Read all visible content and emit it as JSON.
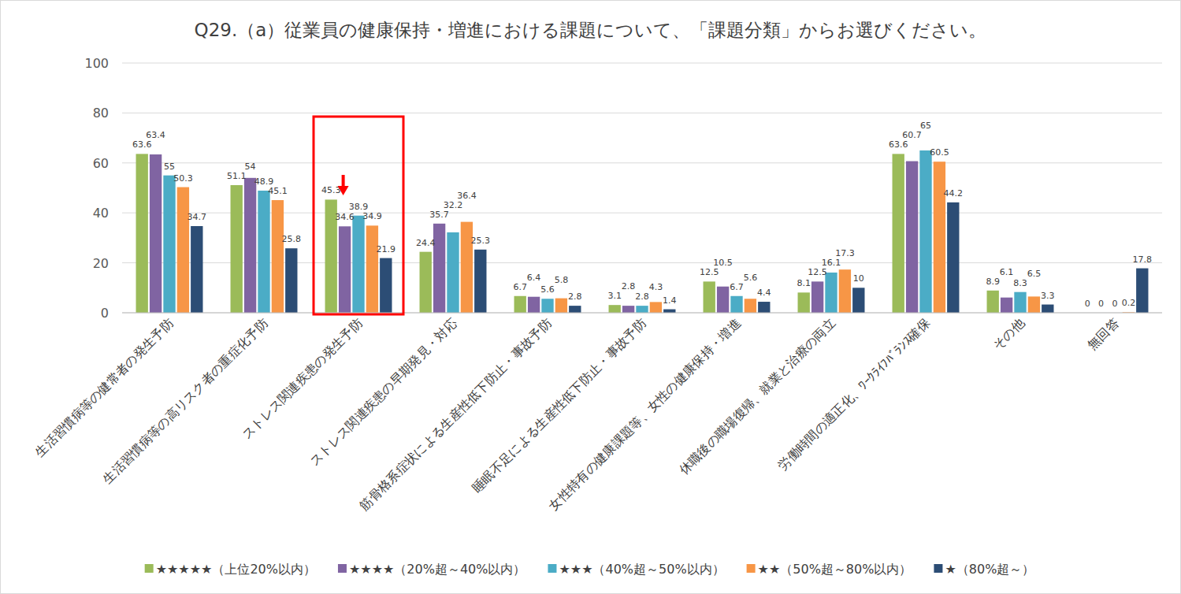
{
  "chart_data": {
    "type": "bar",
    "title": "Q29.（a）従業員の健康保持・増進における課題について、「課題分類」からお選びください。",
    "categories": [
      "生活習慣病等の健常者の発生予防",
      "生活習慣病等の高リスク者の重症化予防",
      "ストレス関連疾患の発生予防",
      "ストレス関連疾患の早期発見・対応",
      "筋骨格系症状による生産性低下防止・事故予防",
      "睡眠不足による生産性低下防止・事故予防",
      "女性特有の健康課題等、女性の健康保持・増進",
      "休職後の職場復帰、就業と治療の両立",
      "労働時間の適正化、ﾜｰｸﾗｲﾌﾊﾞﾗﾝｽ確保",
      "その他",
      "無回答"
    ],
    "series": [
      {
        "name": "★★★★★（上位20%以内）",
        "color": "#9bbb59",
        "values": [
          63.6,
          51.1,
          45.3,
          24.4,
          6.7,
          3.1,
          12.5,
          8.1,
          63.6,
          8.9,
          0
        ]
      },
      {
        "name": "★★★★（20%超～40%以内）",
        "color": "#8064a2",
        "values": [
          63.4,
          54,
          34.6,
          35.7,
          6.4,
          2.8,
          10.5,
          12.5,
          60.7,
          6.1,
          0
        ]
      },
      {
        "name": "★★★（40%超～50%以内）",
        "color": "#4bacc6",
        "values": [
          55,
          48.9,
          38.9,
          32.2,
          5.6,
          2.8,
          6.7,
          16.1,
          65,
          8.3,
          0
        ]
      },
      {
        "name": "★★（50%超～80%以内）",
        "color": "#f79646",
        "values": [
          50.3,
          45.1,
          34.9,
          36.4,
          5.8,
          4.3,
          5.6,
          17.3,
          60.5,
          6.5,
          0.2
        ]
      },
      {
        "name": "★（80%超～）",
        "color": "#2c4d75",
        "values": [
          34.7,
          25.8,
          21.9,
          25.3,
          2.8,
          1.4,
          4.4,
          10,
          44.2,
          3.3,
          17.8
        ]
      }
    ],
    "ylim": [
      0,
      100
    ],
    "yticks": [
      0,
      20,
      40,
      60,
      80,
      100
    ],
    "grid": true,
    "legend": "bottom",
    "data_labels": true
  }
}
